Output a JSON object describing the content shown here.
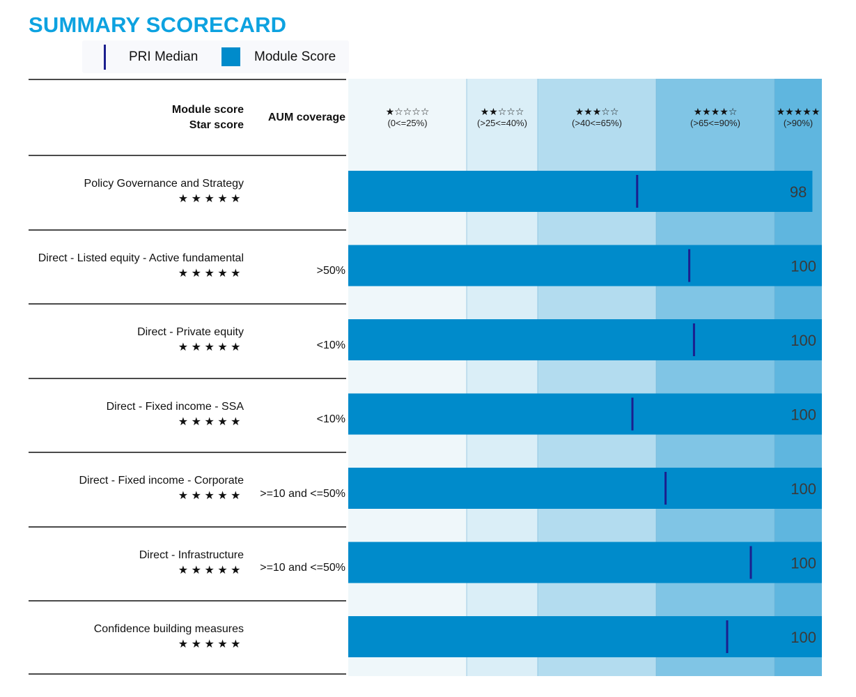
{
  "title": "SUMMARY SCORECARD",
  "legend": {
    "median_label": "PRI Median",
    "score_label": "Module Score"
  },
  "header": {
    "module_score": "Module score",
    "star_score": "Star score",
    "aum_coverage": "AUM coverage"
  },
  "colors": {
    "band1": "#eff7fa",
    "band2": "#daeef7",
    "band3": "#b3dcef",
    "band4": "#80c5e5",
    "band5": "#5fb6df",
    "bar": "#008bcb",
    "median": "#1b1f8e",
    "score_text": "#3a3a3a",
    "title": "#0da2e0"
  },
  "chart_data": {
    "type": "bar",
    "orientation": "horizontal",
    "xlim": [
      0,
      100
    ],
    "bands": [
      {
        "stars": "★☆☆☆☆",
        "label": "(0<=25%)",
        "from": 0,
        "to": 25
      },
      {
        "stars": "★★☆☆☆",
        "label": "(>25<=40%)",
        "from": 25,
        "to": 40
      },
      {
        "stars": "★★★☆☆",
        "label": "(>40<=65%)",
        "from": 40,
        "to": 65
      },
      {
        "stars": "★★★★☆",
        "label": "(>65<=90%)",
        "from": 65,
        "to": 90
      },
      {
        "stars": "★★★★★",
        "label": "(>90%)",
        "from": 90,
        "to": 100
      }
    ],
    "rows": [
      {
        "module": "Policy Governance and Strategy",
        "stars": "★★★★★",
        "aum": "",
        "score": 98,
        "median": 61
      },
      {
        "module": "Direct - Listed equity - Active fundamental",
        "stars": "★★★★★",
        "aum": ">50%",
        "score": 100,
        "median": 72
      },
      {
        "module": "Direct - Private equity",
        "stars": "★★★★★",
        "aum": "<10%",
        "score": 100,
        "median": 73
      },
      {
        "module": "Direct - Fixed income - SSA",
        "stars": "★★★★★",
        "aum": "<10%",
        "score": 100,
        "median": 60
      },
      {
        "module": "Direct - Fixed income - Corporate",
        "stars": "★★★★★",
        "aum": ">=10 and <=50%",
        "score": 100,
        "median": 67
      },
      {
        "module": "Direct - Infrastructure",
        "stars": "★★★★★",
        "aum": ">=10 and <=50%",
        "score": 100,
        "median": 85
      },
      {
        "module": "Confidence building measures",
        "stars": "★★★★★",
        "aum": "",
        "score": 100,
        "median": 80
      }
    ]
  }
}
